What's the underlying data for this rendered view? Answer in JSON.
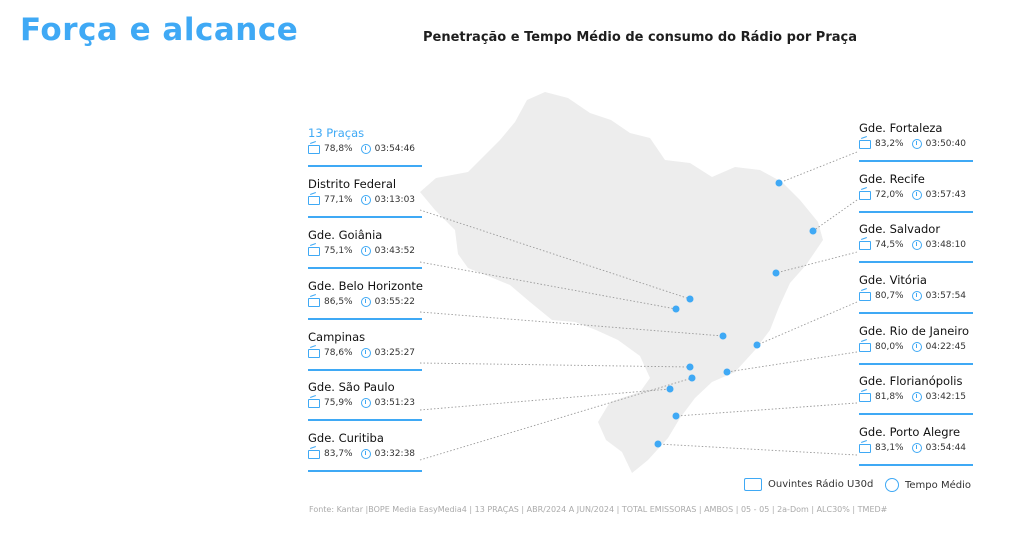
{
  "header": {
    "title": "Força e alcance",
    "subtitle": "Penetração e Tempo Médio de consumo do Rádio por Praça"
  },
  "colors": {
    "accent": "#3fa9f5",
    "map_fill": "#eeeeee"
  },
  "markets_left": [
    {
      "name": "13 Praças",
      "penetration": "78,8%",
      "time": "03:54:46",
      "highlight": true
    },
    {
      "name": "Distrito Federal",
      "penetration": "77,1%",
      "time": "03:13:03"
    },
    {
      "name": "Gde. Goiânia",
      "penetration": "75,1%",
      "time": "03:43:52"
    },
    {
      "name": "Gde. Belo Horizonte",
      "penetration": "86,5%",
      "time": "03:55:22"
    },
    {
      "name": "Campinas",
      "penetration": "78,6%",
      "time": "03:25:27"
    },
    {
      "name": "Gde. São Paulo",
      "penetration": "75,9%",
      "time": "03:51:23"
    },
    {
      "name": "Gde. Curitiba",
      "penetration": "83,7%",
      "time": "03:32:38"
    }
  ],
  "markets_right": [
    {
      "name": "Gde. Fortaleza",
      "penetration": "83,2%",
      "time": "03:50:40"
    },
    {
      "name": "Gde. Recife",
      "penetration": "72,0%",
      "time": "03:57:43"
    },
    {
      "name": "Gde. Salvador",
      "penetration": "74,5%",
      "time": "03:48:10"
    },
    {
      "name": "Gde. Vitória",
      "penetration": "80,7%",
      "time": "03:57:54"
    },
    {
      "name": "Gde. Rio de Janeiro",
      "penetration": "80,0%",
      "time": "04:22:45"
    },
    {
      "name": "Gde. Florianópolis",
      "penetration": "81,8%",
      "time": "03:42:15"
    },
    {
      "name": "Gde. Porto Alegre",
      "penetration": "83,1%",
      "time": "03:54:44"
    }
  ],
  "legend": {
    "listeners_icon": "radio-icon",
    "listeners_label": "Ouvintes Rádio U30d",
    "time_icon": "clock-icon",
    "time_label": "Tempo Médio"
  },
  "footer": {
    "source": "Fonte: Kantar |BOPE Media EasyMedia4 | 13 PRAÇAS | ABR/2024 A JUN/2024 | TOTAL EMISSORAS | AMBOS | 05 - 05 | 2a-Dom | ALC30% | TMED#"
  }
}
